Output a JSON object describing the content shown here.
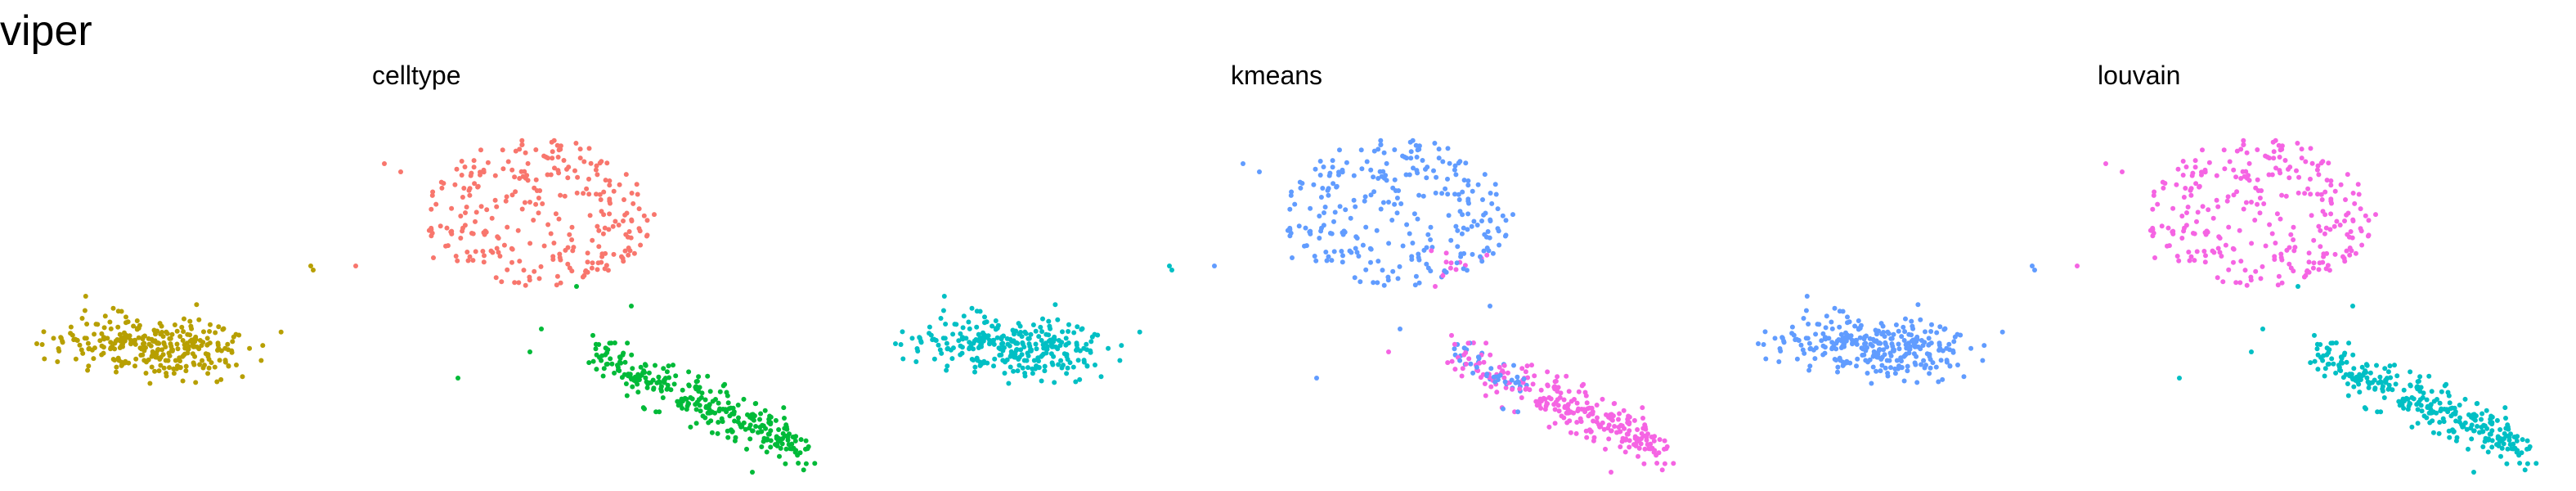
{
  "title": "viper",
  "chart_data": [
    {
      "type": "scatter",
      "title": "celltype",
      "grid": false,
      "axes": "none",
      "point_groups": [
        "upper-cluster",
        "left-cluster",
        "lower-right-cluster"
      ],
      "colors": {
        "upper-cluster": "#F8766D",
        "left-cluster": "#B79F00",
        "lower-right-cluster": "#00BA38"
      }
    },
    {
      "type": "scatter",
      "title": "kmeans",
      "grid": false,
      "axes": "none",
      "point_groups": [
        "upper-cluster",
        "left-cluster",
        "lower-right-cluster"
      ],
      "colors": {
        "upper-cluster": "#619CFF",
        "left-cluster": "#00BFC4",
        "lower-right-cluster": "#F564E3"
      }
    },
    {
      "type": "scatter",
      "title": "louvain",
      "grid": false,
      "axes": "none",
      "point_groups": [
        "upper-cluster",
        "left-cluster",
        "lower-right-cluster"
      ],
      "colors": {
        "upper-cluster": "#F564E3",
        "left-cluster": "#619CFF",
        "lower-right-cluster": "#00BFC4"
      }
    }
  ]
}
